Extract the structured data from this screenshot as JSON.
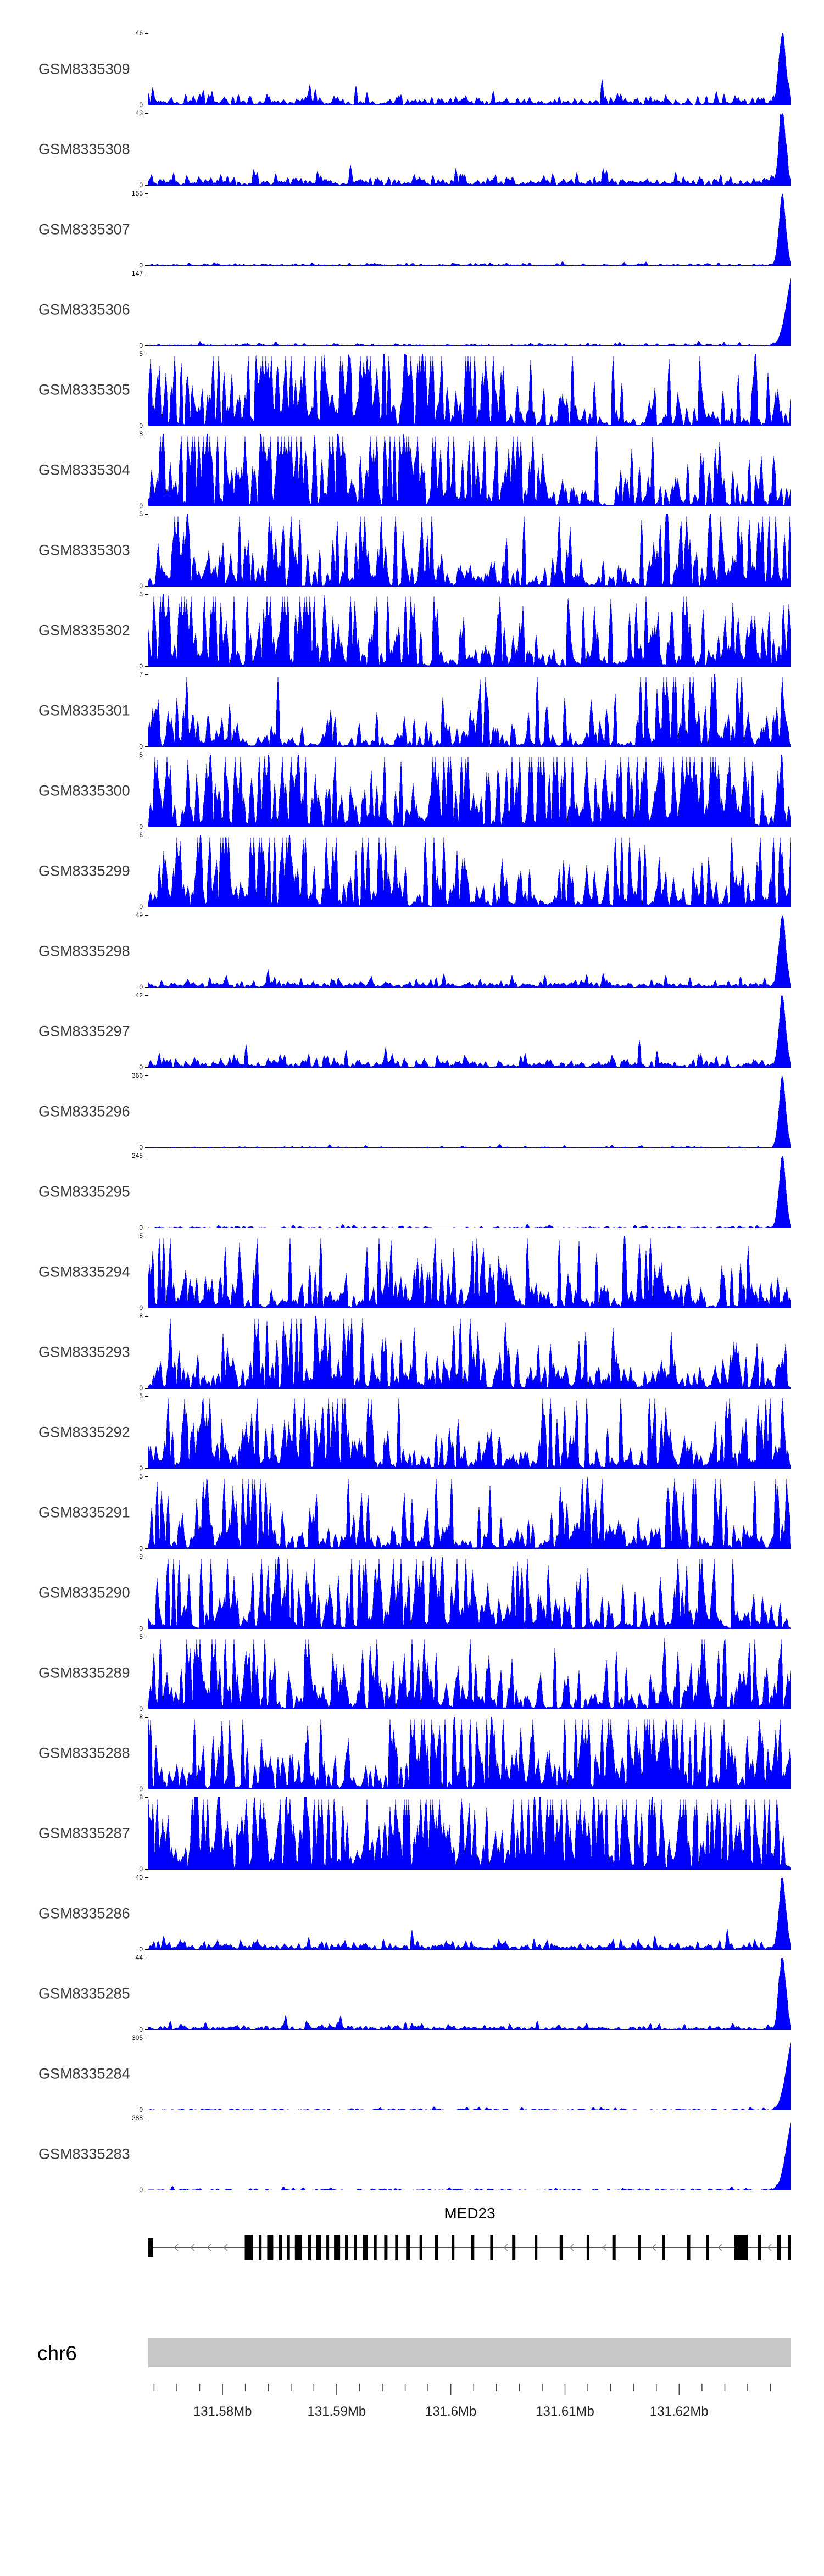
{
  "figure_title": "",
  "colors": {
    "signal": "#0000FF",
    "exon": "#000000",
    "gene_line": "#555555",
    "arrow": "#777777",
    "ideogram": "#C8C8C8",
    "tick": "#444444"
  },
  "chart_data": {
    "type": "area",
    "description": "Genome browser coverage tracks (blue filled histograms) for 27 GEO samples over the MED23 locus on chr6, with gene model and genomic coordinate axis",
    "signal_color": "#0000FF",
    "tracks": [
      {
        "name": "GSM8335309",
        "ymax": 46,
        "ymin": 0,
        "pattern": "sparse",
        "noise": 0.05,
        "peak": "spike"
      },
      {
        "name": "GSM8335308",
        "ymax": 43,
        "ymin": 0,
        "pattern": "sparse",
        "noise": 0.05,
        "peak": "spike"
      },
      {
        "name": "GSM8335307",
        "ymax": 155,
        "ymin": 0,
        "pattern": "sparse",
        "noise": 0.012,
        "peak": "spike"
      },
      {
        "name": "GSM8335306",
        "ymax": 147,
        "ymin": 0,
        "pattern": "sparse",
        "noise": 0.012,
        "peak": "ramp"
      },
      {
        "name": "GSM8335305",
        "ymax": 5,
        "ymin": 0,
        "pattern": "dense",
        "intensity": 0.42
      },
      {
        "name": "GSM8335304",
        "ymax": 8,
        "ymin": 0,
        "pattern": "dense",
        "intensity": 0.48
      },
      {
        "name": "GSM8335303",
        "ymax": 5,
        "ymin": 0,
        "pattern": "dense",
        "intensity": 0.36
      },
      {
        "name": "GSM8335302",
        "ymax": 5,
        "ymin": 0,
        "pattern": "dense",
        "intensity": 0.46
      },
      {
        "name": "GSM8335301",
        "ymax": 7,
        "ymin": 0,
        "pattern": "dense",
        "intensity": 0.34
      },
      {
        "name": "GSM8335300",
        "ymax": 5,
        "ymin": 0,
        "pattern": "dense",
        "intensity": 0.4
      },
      {
        "name": "GSM8335299",
        "ymax": 6,
        "ymin": 0,
        "pattern": "dense",
        "intensity": 0.44
      },
      {
        "name": "GSM8335298",
        "ymax": 49,
        "ymin": 0,
        "pattern": "sparse",
        "noise": 0.042,
        "peak": "spike"
      },
      {
        "name": "GSM8335297",
        "ymax": 42,
        "ymin": 0,
        "pattern": "sparse",
        "noise": 0.045,
        "peak": "spike"
      },
      {
        "name": "GSM8335296",
        "ymax": 366,
        "ymin": 0,
        "pattern": "sparse",
        "noise": 0.007,
        "peak": "spike"
      },
      {
        "name": "GSM8335295",
        "ymax": 245,
        "ymin": 0,
        "pattern": "sparse",
        "noise": 0.009,
        "peak": "spike"
      },
      {
        "name": "GSM8335294",
        "ymax": 5,
        "ymin": 0,
        "pattern": "dense",
        "intensity": 0.47
      },
      {
        "name": "GSM8335293",
        "ymax": 8,
        "ymin": 0,
        "pattern": "dense",
        "intensity": 0.44
      },
      {
        "name": "GSM8335292",
        "ymax": 5,
        "ymin": 0,
        "pattern": "dense",
        "intensity": 0.36
      },
      {
        "name": "GSM8335291",
        "ymax": 5,
        "ymin": 0,
        "pattern": "dense",
        "intensity": 0.47
      },
      {
        "name": "GSM8335290",
        "ymax": 9,
        "ymin": 0,
        "pattern": "dense",
        "intensity": 0.37
      },
      {
        "name": "GSM8335289",
        "ymax": 5,
        "ymin": 0,
        "pattern": "dense",
        "intensity": 0.4
      },
      {
        "name": "GSM8335288",
        "ymax": 8,
        "ymin": 0,
        "pattern": "dense",
        "intensity": 0.44
      },
      {
        "name": "GSM8335287",
        "ymax": 8,
        "ymin": 0,
        "pattern": "dense",
        "intensity": 0.62
      },
      {
        "name": "GSM8335286",
        "ymax": 40,
        "ymin": 0,
        "pattern": "sparse",
        "noise": 0.04,
        "peak": "spike"
      },
      {
        "name": "GSM8335285",
        "ymax": 44,
        "ymin": 0,
        "pattern": "sparse",
        "noise": 0.028,
        "peak": "spike"
      },
      {
        "name": "GSM8335284",
        "ymax": 305,
        "ymin": 0,
        "pattern": "sparse",
        "noise": 0.008,
        "peak": "ramp"
      },
      {
        "name": "GSM8335283",
        "ymax": 288,
        "ymin": 0,
        "pattern": "sparse",
        "noise": 0.008,
        "peak": "ramp"
      }
    ],
    "gene_track": {
      "gene": "MED23",
      "strand": "minus",
      "exons": [
        {
          "f": 0.0,
          "w": 9,
          "h": 0.75
        },
        {
          "f": 0.15,
          "w": 15,
          "h": 1
        },
        {
          "f": 0.172,
          "w": 5,
          "h": 1
        },
        {
          "f": 0.185,
          "w": 11,
          "h": 1
        },
        {
          "f": 0.203,
          "w": 6,
          "h": 1
        },
        {
          "f": 0.216,
          "w": 5,
          "h": 1
        },
        {
          "f": 0.228,
          "w": 13,
          "h": 1
        },
        {
          "f": 0.248,
          "w": 6,
          "h": 1
        },
        {
          "f": 0.261,
          "w": 9,
          "h": 1
        },
        {
          "f": 0.277,
          "w": 5,
          "h": 1
        },
        {
          "f": 0.289,
          "w": 11,
          "h": 1
        },
        {
          "f": 0.306,
          "w": 6,
          "h": 1
        },
        {
          "f": 0.32,
          "w": 5,
          "h": 1
        },
        {
          "f": 0.334,
          "w": 9,
          "h": 1
        },
        {
          "f": 0.351,
          "w": 5,
          "h": 1
        },
        {
          "f": 0.367,
          "w": 6,
          "h": 1
        },
        {
          "f": 0.384,
          "w": 5,
          "h": 1
        },
        {
          "f": 0.401,
          "w": 7,
          "h": 1
        },
        {
          "f": 0.422,
          "w": 5,
          "h": 1
        },
        {
          "f": 0.446,
          "w": 6,
          "h": 1
        },
        {
          "f": 0.472,
          "w": 5,
          "h": 1
        },
        {
          "f": 0.502,
          "w": 6,
          "h": 1
        },
        {
          "f": 0.532,
          "w": 5,
          "h": 1
        },
        {
          "f": 0.566,
          "w": 6,
          "h": 1
        },
        {
          "f": 0.601,
          "w": 5,
          "h": 1
        },
        {
          "f": 0.64,
          "w": 6,
          "h": 1
        },
        {
          "f": 0.682,
          "w": 5,
          "h": 1
        },
        {
          "f": 0.722,
          "w": 6,
          "h": 1
        },
        {
          "f": 0.762,
          "w": 5,
          "h": 1
        },
        {
          "f": 0.8,
          "w": 5,
          "h": 1
        },
        {
          "f": 0.838,
          "w": 6,
          "h": 1
        },
        {
          "f": 0.868,
          "w": 5,
          "h": 1
        },
        {
          "f": 0.912,
          "w": 24,
          "h": 1
        },
        {
          "f": 0.948,
          "w": 6,
          "h": 1
        },
        {
          "f": 0.978,
          "w": 7,
          "h": 1
        },
        {
          "f": 0.996,
          "w": 6,
          "h": 1
        }
      ]
    },
    "axis": {
      "chromosome": "chr6",
      "start_mb": 131.5735,
      "end_mb": 131.6298,
      "major_ticks_mb": [
        131.58,
        131.59,
        131.6,
        131.61,
        131.62
      ],
      "major_tick_labels": [
        "131.58Mb",
        "131.59Mb",
        "131.6Mb",
        "131.61Mb",
        "131.62Mb"
      ],
      "minor_tick_step_mb": 0.002
    }
  }
}
